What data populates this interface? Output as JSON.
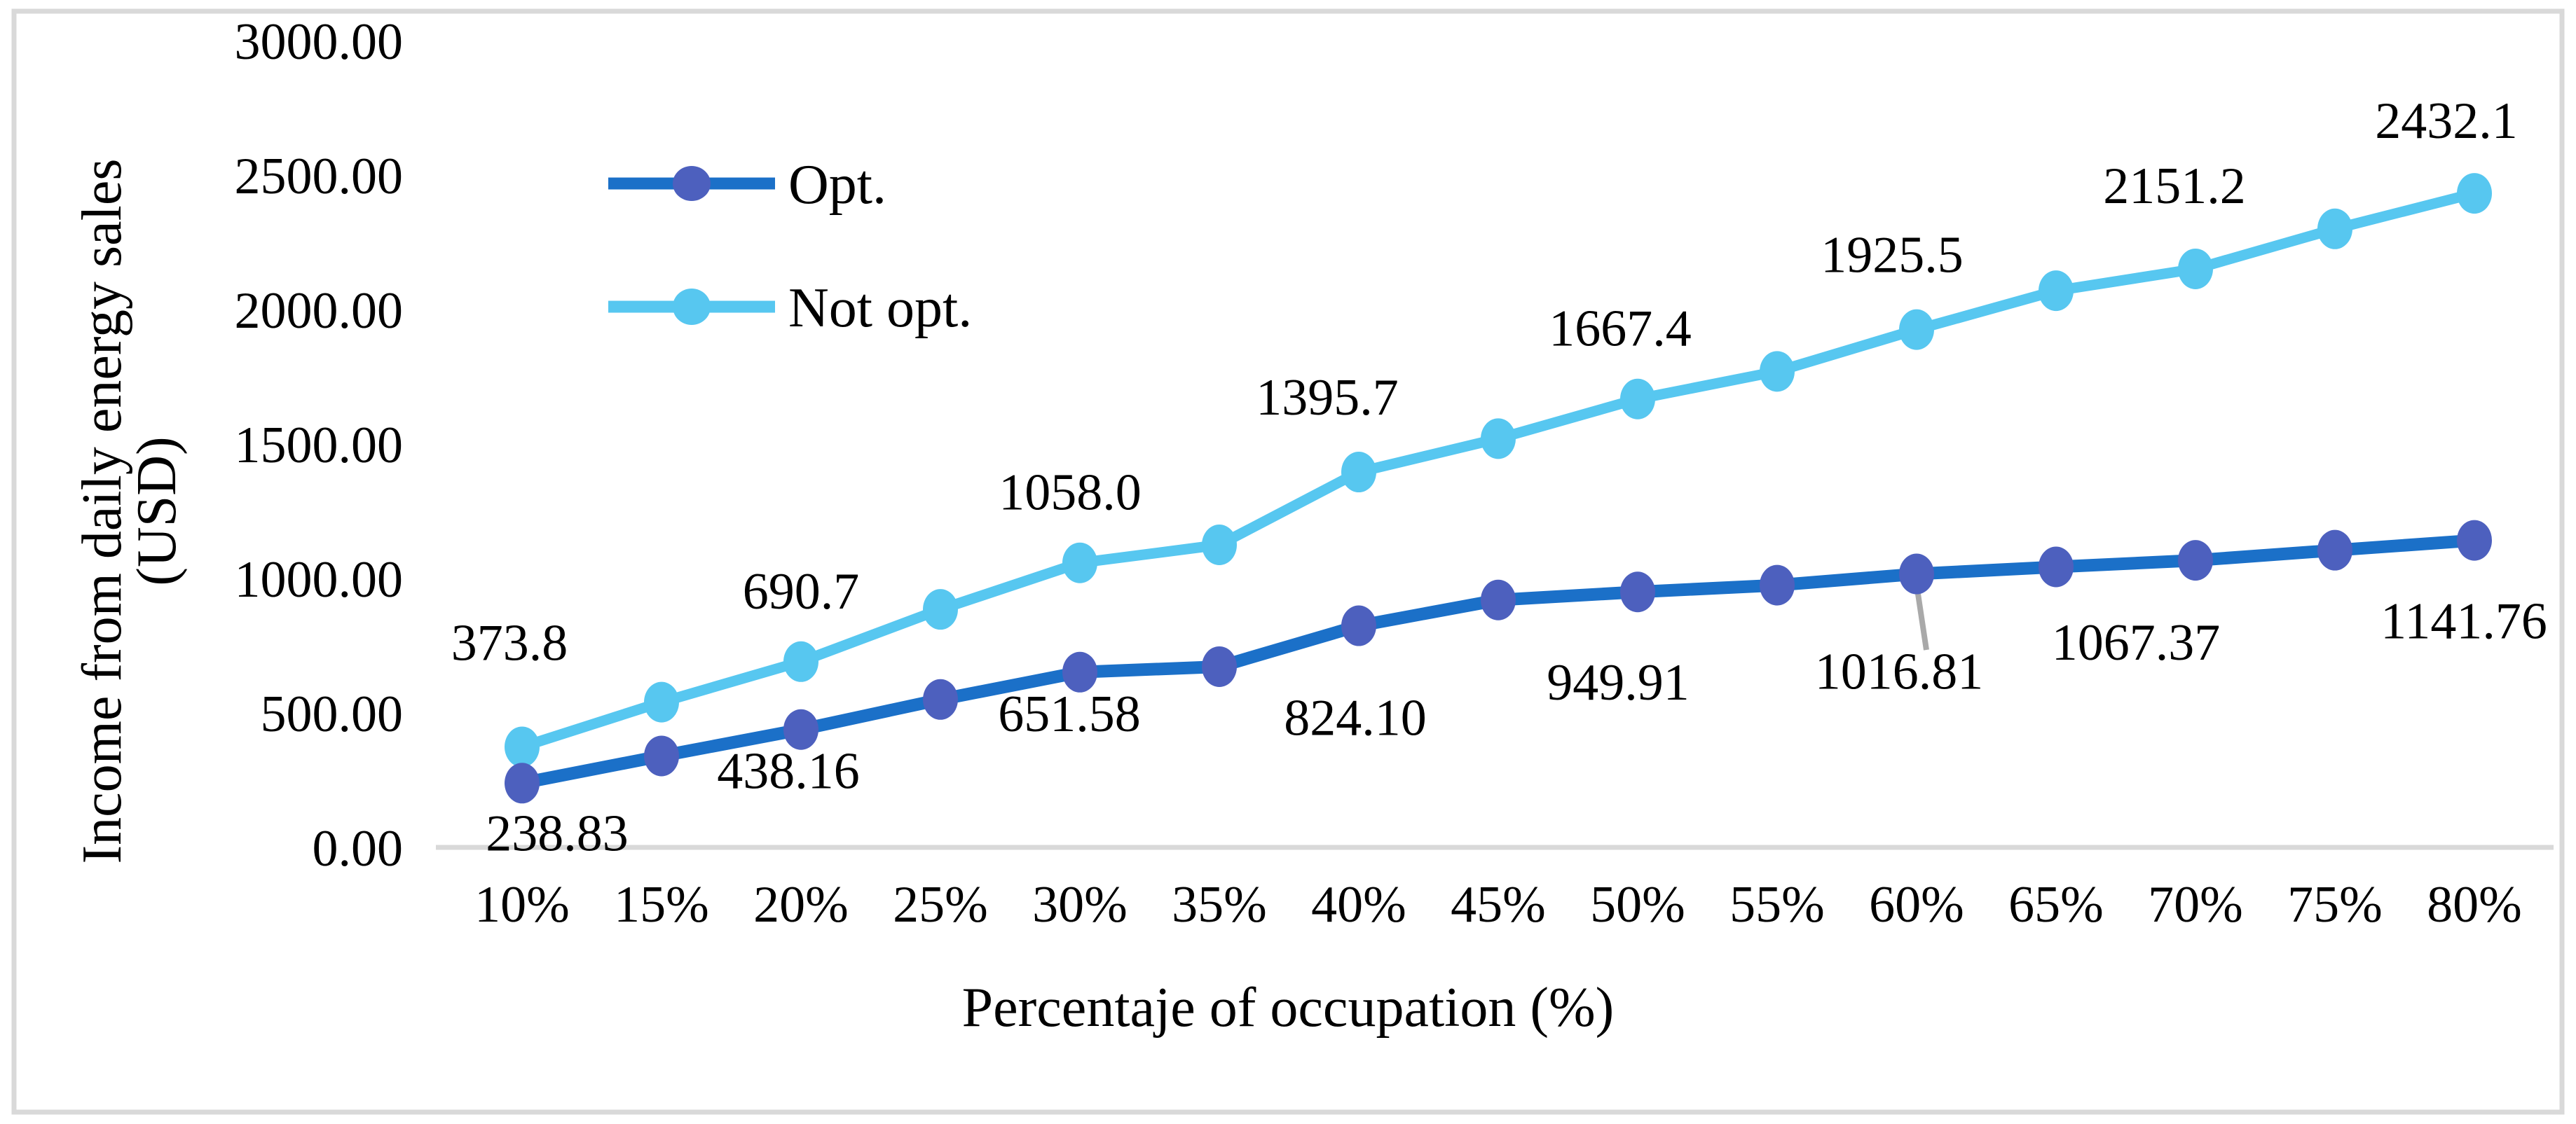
{
  "figure": {
    "kind": "line-chart-figure",
    "background": "#ffffff",
    "frame_color": "#d9d9d9",
    "axis_line_color": "#d9d9d9",
    "artifact_color": "#a9a9a9",
    "text_color": "#000000"
  },
  "chart_data": {
    "type": "line",
    "title": "",
    "xlabel": "Percentaje of occupation (%)",
    "ylabel": "Income from daily energy sales (USD)",
    "ylabel_line1": "Income from daily energy sales",
    "ylabel_line2": "(USD)",
    "categories": [
      "10%",
      "15%",
      "20%",
      "25%",
      "30%",
      "35%",
      "40%",
      "45%",
      "50%",
      "55%",
      "60%",
      "65%",
      "70%",
      "75%",
      "80%"
    ],
    "y_ticks": [
      "3000.00",
      "2500.00",
      "2000.00",
      "1500.00",
      "1000.00",
      "500.00",
      "0.00"
    ],
    "ylim": [
      0,
      3000
    ],
    "y_tick_step": 500,
    "grid": false,
    "legend_position": "upper-left-inside",
    "series": [
      {
        "name": "Opt.",
        "line_color": "#1b70c8",
        "marker_color": "#4d60be",
        "values": [
          238.83,
          340,
          438.16,
          550,
          651.58,
          672,
          824.1,
          920,
          949.91,
          975,
          1016.81,
          1043,
          1067.37,
          1105,
          1141.76
        ],
        "point_labels": [
          "238.83",
          "",
          "438.16",
          "",
          "651.58",
          "",
          "824.10",
          "",
          "949.91",
          "",
          "1016.81",
          "",
          "1067.37",
          "",
          "1141.76"
        ]
      },
      {
        "name": "Not opt.",
        "line_color": "#57c7f0",
        "marker_color": "#57c7f0",
        "values": [
          373.8,
          540,
          690.7,
          885,
          1058.0,
          1125,
          1395.7,
          1520,
          1667.4,
          1770,
          1925.5,
          2070,
          2151.2,
          2300,
          2432.1
        ],
        "point_labels": [
          "373.8",
          "",
          "690.7",
          "",
          "1058.0",
          "",
          "1395.7",
          "",
          "1667.4",
          "",
          "1925.5",
          "",
          "2151.2",
          "",
          "2432.1"
        ]
      }
    ]
  }
}
